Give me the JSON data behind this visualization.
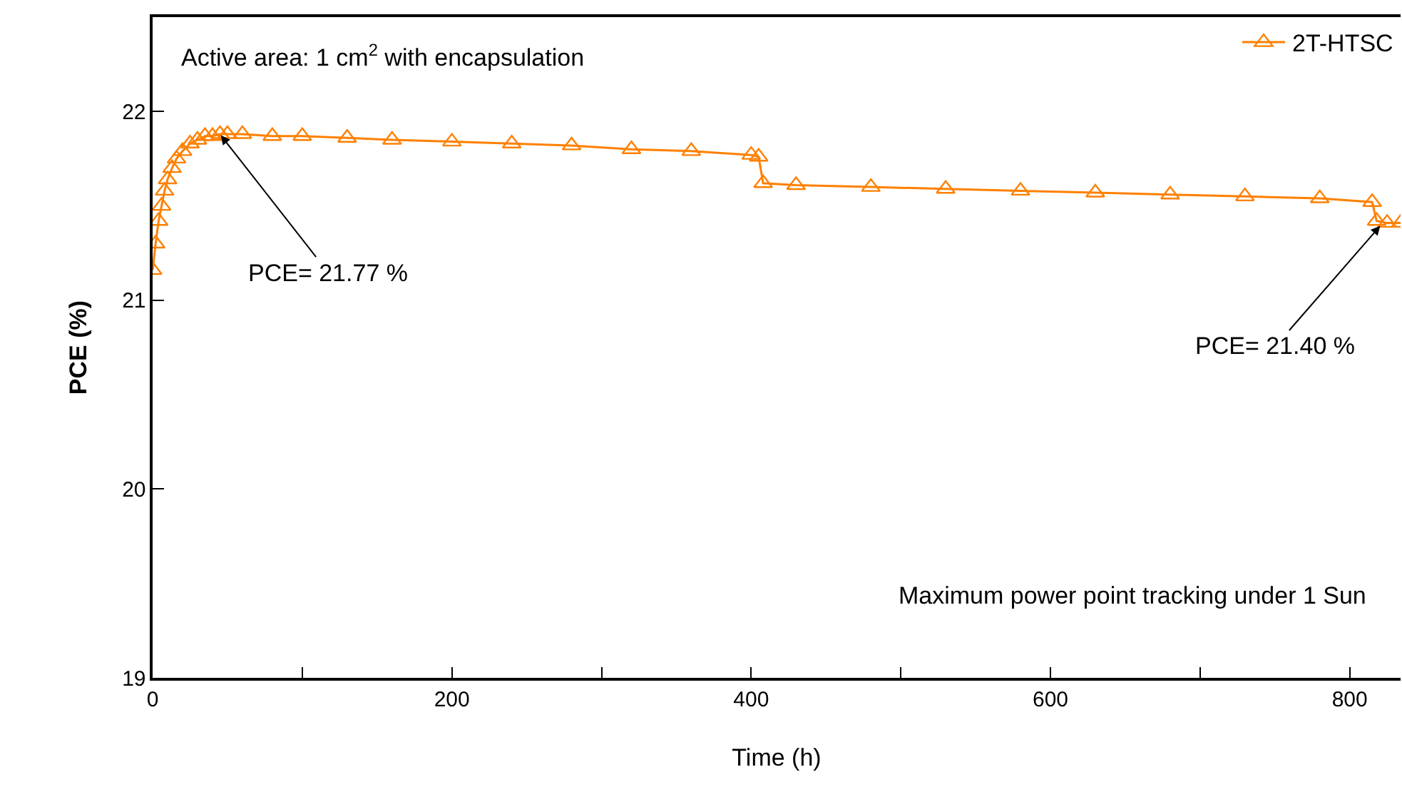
{
  "chart_data": {
    "type": "line",
    "xlabel": "Time (h)",
    "ylabel": "PCE (%)",
    "x": [
      0,
      2,
      4,
      6,
      8,
      10,
      13,
      16,
      20,
      25,
      30,
      35,
      40,
      45,
      50,
      60,
      80,
      100,
      130,
      160,
      200,
      240,
      280,
      320,
      360,
      400,
      405,
      408,
      430,
      480,
      530,
      580,
      630,
      680,
      730,
      780,
      815,
      818,
      825,
      834
    ],
    "series": [
      {
        "name": "2T-HTSC",
        "color": "#ff8000",
        "values": [
          21.16,
          21.3,
          21.42,
          21.5,
          21.58,
          21.64,
          21.7,
          21.75,
          21.79,
          21.83,
          21.85,
          21.87,
          21.87,
          21.88,
          21.88,
          21.88,
          21.87,
          21.87,
          21.86,
          21.85,
          21.84,
          21.83,
          21.82,
          21.8,
          21.79,
          21.77,
          21.76,
          21.62,
          21.61,
          21.6,
          21.59,
          21.58,
          21.57,
          21.56,
          21.55,
          21.54,
          21.52,
          21.42,
          21.41,
          21.41
        ]
      }
    ],
    "xlim": [
      0,
      834
    ],
    "ylim": [
      19,
      22.5
    ],
    "xticks": [
      0,
      {
        "value": 100,
        "label": null
      },
      200,
      {
        "value": 300,
        "label": null
      },
      400,
      {
        "value": 500,
        "label": null
      },
      600,
      {
        "value": 700,
        "label": null
      },
      800
    ],
    "yticks": [
      19,
      20,
      21,
      22
    ],
    "marker": "triangle",
    "grid": false,
    "legend": "top right",
    "annotations": [
      "Active area: 1 cm$^{2}$ with encapsulation",
      "Maximum power point tracking under 1 Sun",
      {
        "text": "PCE= 21.77 %",
        "x": 45,
        "y": 21.88
      },
      {
        "text": "PCE= 21.40 %",
        "x": 821,
        "y": 21.4
      }
    ]
  }
}
